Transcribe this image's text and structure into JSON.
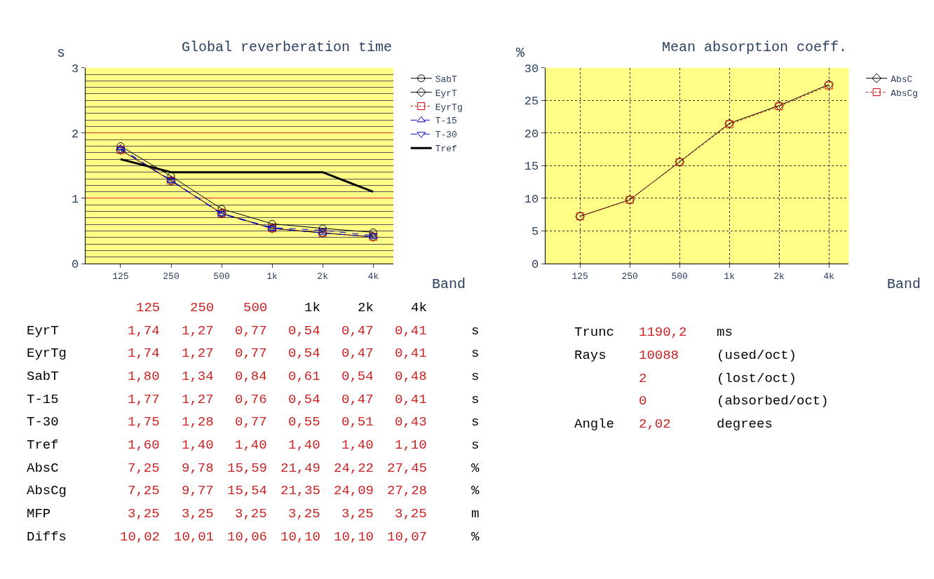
{
  "chart_data": [
    {
      "type": "line",
      "title": "Global reverberation time",
      "ylabel": "s",
      "xlabel": "Band",
      "categories": [
        "125",
        "250",
        "500",
        "1k",
        "2k",
        "4k"
      ],
      "ylim": [
        0,
        3
      ],
      "yticks": [
        0,
        1,
        2,
        3
      ],
      "grid": "y",
      "legend": "right",
      "series": [
        {
          "name": "SabT",
          "color": "#000000",
          "marker": "circle",
          "line_style": "solid",
          "values": [
            1.8,
            1.34,
            0.84,
            0.61,
            0.54,
            0.48
          ]
        },
        {
          "name": "EyrT",
          "color": "#000000",
          "marker": "diamond",
          "line_style": "solid",
          "values": [
            1.74,
            1.27,
            0.77,
            0.54,
            0.47,
            0.41
          ]
        },
        {
          "name": "EyrTg",
          "color": "#cc0000",
          "marker": "square",
          "line_style": "dotted",
          "values": [
            1.74,
            1.27,
            0.77,
            0.54,
            0.47,
            0.41
          ]
        },
        {
          "name": "T-15",
          "color": "#0000cc",
          "marker": "triangle",
          "line_style": "dashed",
          "values": [
            1.77,
            1.27,
            0.76,
            0.54,
            0.47,
            0.41
          ]
        },
        {
          "name": "T-30",
          "color": "#0000cc",
          "marker": "triangle-down",
          "line_style": "dashed",
          "values": [
            1.75,
            1.28,
            0.77,
            0.55,
            0.51,
            0.43
          ]
        },
        {
          "name": "Tref",
          "color": "#000000",
          "marker": "none",
          "line_style": "solid",
          "values": [
            1.6,
            1.4,
            1.4,
            1.4,
            1.4,
            1.1
          ]
        }
      ]
    },
    {
      "type": "line",
      "title": "Mean absorption coeff.",
      "ylabel": "%",
      "xlabel": "Band",
      "categories": [
        "125",
        "250",
        "500",
        "1k",
        "2k",
        "4k"
      ],
      "ylim": [
        0,
        30
      ],
      "yticks": [
        0,
        5,
        10,
        15,
        20,
        25,
        30
      ],
      "grid": true,
      "legend": "right",
      "series": [
        {
          "name": "AbsC",
          "color": "#000000",
          "marker": "diamond",
          "line_style": "solid",
          "values": [
            7.25,
            9.78,
            15.59,
            21.49,
            24.22,
            27.45
          ]
        },
        {
          "name": "AbsCg",
          "color": "#cc0000",
          "marker": "square",
          "line_style": "dotted",
          "values": [
            7.25,
            9.77,
            15.54,
            21.35,
            24.09,
            27.28
          ]
        }
      ]
    },
    {
      "type": "other",
      "annotations": [
        "125 250 500 1k 2k 4k",
        "EyrT 1,74 1,27 0,77 0,54 0,47 0,41 s",
        "EyrTg 1,74 1,27 0,77 0,54 0,47 0,41 s",
        "SabT 1,80 1,34 0,84 0,61 0,54 0,48 s",
        "T-15 1,77 1,27 0,76 0,54 0,47 0,41 s",
        "T-30 1,75 1,28 0,77 0,55 0,51 0,43 s",
        "Tref 1,60 1,40 1,40 1,40 1,40 1,10 s",
        "AbsC 7,25 9,78 15,59 21,49 24,22 27,45 %",
        "AbsCg 7,25 9,77 15,54 21,35 24,09 27,28 %",
        "MFP 3,25 3,25 3,25 3,25 3,25 3,25 m",
        "Diffs 10,02 10,01 10,06 10,10 10,10 10,07 %"
      ]
    },
    {
      "type": "other",
      "annotations": [
        "Trunc 1190,2 ms",
        "Rays 10088 (used/oct)",
        "2 (lost/oct)",
        "0 (absorbed/oct)",
        "Angle 2,02 degrees"
      ]
    }
  ]
}
